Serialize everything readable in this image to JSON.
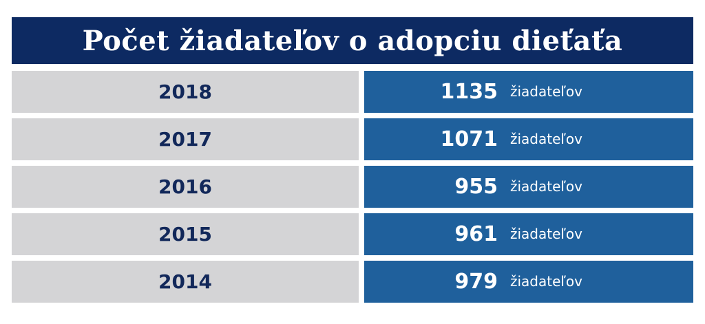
{
  "chart_data": {
    "type": "table",
    "title": "Počet žiadateľov o adopciu dieťaťa",
    "unit": "žiadateľov",
    "rows": [
      {
        "year": "2018",
        "value": "1135"
      },
      {
        "year": "2017",
        "value": "1071"
      },
      {
        "year": "2016",
        "value": "955"
      },
      {
        "year": "2015",
        "value": "961"
      },
      {
        "year": "2014",
        "value": "979"
      }
    ]
  },
  "colors": {
    "title_background": "#0d2a62",
    "year_cell": "#d4d4d6",
    "value_cell": "#1f609c",
    "year_text": "#12285a"
  }
}
